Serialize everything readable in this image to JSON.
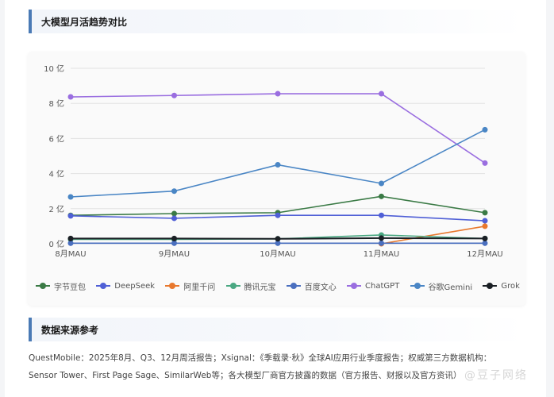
{
  "section_chart": {
    "title": "大模型月活趋势对比"
  },
  "section_sources": {
    "title": "数据来源参考",
    "line1": "QuestMobile：2025年8月、Q3、12月周活报告；Xsignal：《季载录·秋》全球AI应用行业季度报告；权威第三方数据机构：",
    "line2": "Sensor Tower、First Page Sage、SimilarWeb等；各大模型厂商官方披露的数据（官方报告、财报以及官方资讯）"
  },
  "watermark": "@豆子网络",
  "chart_data": {
    "type": "line",
    "title": "大模型月活趋势对比",
    "xlabel": "",
    "ylabel": "",
    "categories": [
      "8月MAU",
      "9月MAU",
      "10月MAU",
      "11月MAU",
      "12月MAU"
    ],
    "y_ticks": [
      "0 亿",
      "2 亿",
      "4 亿",
      "6 亿",
      "8 亿",
      "10 亿"
    ],
    "ylim": [
      0,
      10
    ],
    "unit": "亿",
    "grid": true,
    "legend_position": "bottom",
    "series": [
      {
        "name": "字节豆包",
        "color": "#3a7a45",
        "values": [
          1.62,
          1.72,
          1.77,
          2.7,
          1.77
        ]
      },
      {
        "name": "DeepSeek",
        "color": "#4f5fd6",
        "values": [
          1.59,
          1.45,
          1.62,
          1.62,
          1.31
        ]
      },
      {
        "name": "阿里千问",
        "color": "#e8782d",
        "values": [
          null,
          null,
          null,
          0.0,
          1.0
        ]
      },
      {
        "name": "腾讯元宝",
        "color": "#4aa882",
        "values": [
          0.25,
          0.25,
          0.28,
          0.5,
          0.3
        ]
      },
      {
        "name": "百度文心",
        "color": "#4a6fbf",
        "values": [
          0.03,
          0.03,
          0.03,
          0.03,
          0.03
        ]
      },
      {
        "name": "ChatGPT",
        "color": "#9a6ee0",
        "values": [
          8.37,
          8.45,
          8.55,
          8.55,
          4.6
        ]
      },
      {
        "name": "谷歌Gemini",
        "color": "#4a86c5",
        "values": [
          2.67,
          3.0,
          4.5,
          3.44,
          6.5
        ]
      },
      {
        "name": "Grok",
        "color": "#1a1f24",
        "values": [
          0.3,
          0.3,
          0.28,
          0.32,
          0.3
        ]
      }
    ]
  }
}
